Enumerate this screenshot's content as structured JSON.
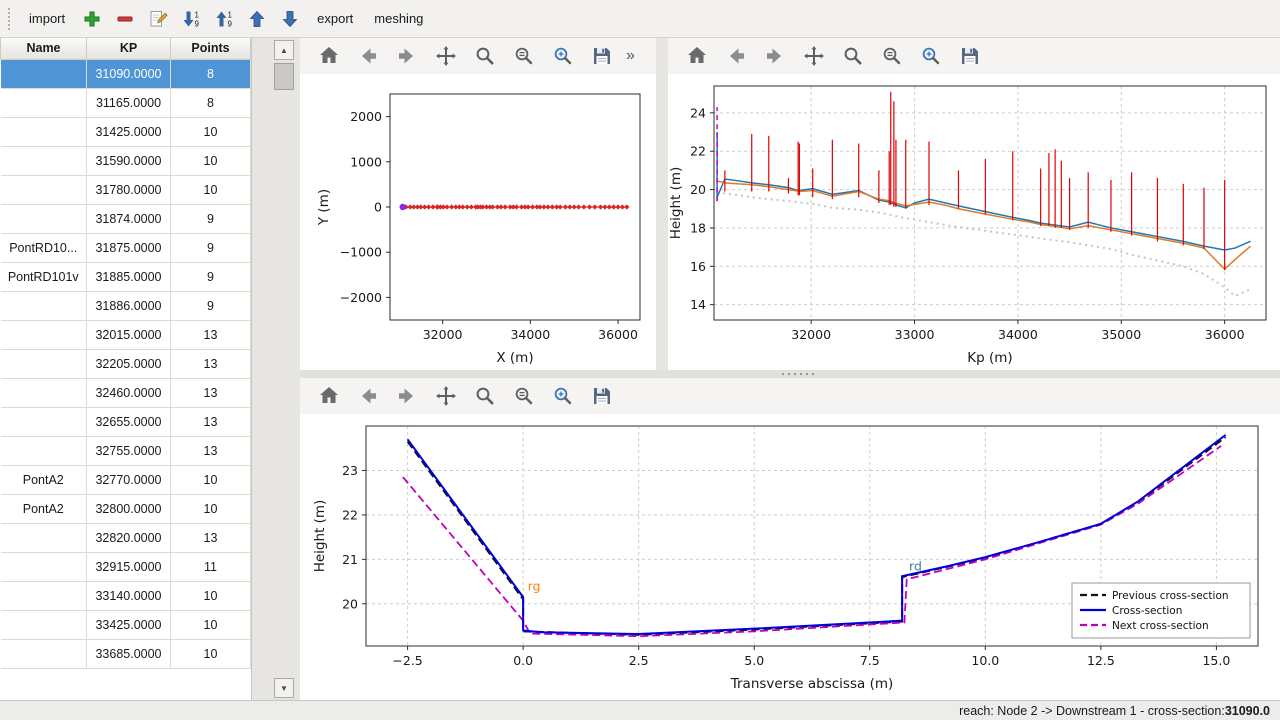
{
  "colors": {
    "selection_blue": "#4f94d4",
    "toolbar_arrow_blue": "#3465a4",
    "add_green": "#2ea52e",
    "remove_red": "#d03a3a"
  },
  "toolbar": {
    "items": [
      {
        "type": "button",
        "label": "import",
        "name": "import-button"
      },
      {
        "type": "icon",
        "icon": "add-icon",
        "name": "add-section-button"
      },
      {
        "type": "icon",
        "icon": "remove-icon",
        "name": "remove-section-button"
      },
      {
        "type": "icon",
        "icon": "edit-icon",
        "name": "edit-section-button"
      },
      {
        "type": "icon",
        "icon": "sort-descending-icon",
        "name": "sort-descending-button"
      },
      {
        "type": "icon",
        "icon": "sort-ascending-icon",
        "name": "sort-ascending-button"
      },
      {
        "type": "icon",
        "icon": "move-up-icon",
        "name": "move-up-button"
      },
      {
        "type": "icon",
        "icon": "move-down-icon",
        "name": "move-down-button"
      },
      {
        "type": "button",
        "label": "export",
        "name": "export-button"
      },
      {
        "type": "button",
        "label": "meshing",
        "name": "meshing-button"
      }
    ]
  },
  "plot_toolbar": {
    "icons": [
      "home-icon",
      "back-icon",
      "forward-icon",
      "pan-icon",
      "zoom-icon",
      "subplots-icon",
      "edit-parameters-icon",
      "save-icon"
    ],
    "overflow_label": "»"
  },
  "table": {
    "columns": [
      "Name",
      "KP",
      "Points"
    ],
    "selected_index": 0,
    "rows": [
      {
        "name": "",
        "kp": "31090.0000",
        "points": "8"
      },
      {
        "name": "",
        "kp": "31165.0000",
        "points": "8"
      },
      {
        "name": "",
        "kp": "31425.0000",
        "points": "10"
      },
      {
        "name": "",
        "kp": "31590.0000",
        "points": "10"
      },
      {
        "name": "",
        "kp": "31780.0000",
        "points": "10"
      },
      {
        "name": "",
        "kp": "31874.0000",
        "points": "9"
      },
      {
        "name": "PontRD10...",
        "kp": "31875.0000",
        "points": "9"
      },
      {
        "name": "PontRD101v",
        "kp": "31885.0000",
        "points": "9"
      },
      {
        "name": "",
        "kp": "31886.0000",
        "points": "9"
      },
      {
        "name": "",
        "kp": "32015.0000",
        "points": "13"
      },
      {
        "name": "",
        "kp": "32205.0000",
        "points": "13"
      },
      {
        "name": "",
        "kp": "32460.0000",
        "points": "13"
      },
      {
        "name": "",
        "kp": "32655.0000",
        "points": "13"
      },
      {
        "name": "",
        "kp": "32755.0000",
        "points": "13"
      },
      {
        "name": "PontA2",
        "kp": "32770.0000",
        "points": "10"
      },
      {
        "name": "PontA2",
        "kp": "32800.0000",
        "points": "10"
      },
      {
        "name": "",
        "kp": "32820.0000",
        "points": "13"
      },
      {
        "name": "",
        "kp": "32915.0000",
        "points": "11"
      },
      {
        "name": "",
        "kp": "33140.0000",
        "points": "10"
      },
      {
        "name": "",
        "kp": "33425.0000",
        "points": "10"
      },
      {
        "name": "",
        "kp": "33685.0000",
        "points": "10"
      }
    ]
  },
  "statusbar": {
    "prefix": "reach: Node 2 -> Downstream 1 - cross-section: ",
    "value": "31090.0"
  },
  "chart_data": [
    {
      "name": "plan-view",
      "type": "scatter",
      "title": "",
      "xlabel": "X (m)",
      "ylabel": "Y (m)",
      "xlim": [
        30800,
        36500
      ],
      "ylim": [
        -2500,
        2500
      ],
      "xticks": [
        32000,
        34000,
        36000
      ],
      "yticks": [
        -2000,
        -1000,
        0,
        1000,
        2000
      ],
      "x_decimals": 0,
      "grid": false,
      "series": [
        {
          "name": "river-axis-sections",
          "color": "#e8542c",
          "width": 1.2,
          "marker": "diamond",
          "marker_size": 2.6,
          "marker_color": "#d62728",
          "x": [
            31090,
            31165,
            31260,
            31340,
            31425,
            31500,
            31590,
            31680,
            31780,
            31874,
            31886,
            31950,
            32015,
            32100,
            32205,
            32300,
            32380,
            32460,
            32560,
            32655,
            32755,
            32800,
            32860,
            32915,
            33000,
            33075,
            33140,
            33250,
            33330,
            33425,
            33540,
            33610,
            33685,
            33800,
            33880,
            33950,
            34050,
            34150,
            34220,
            34310,
            34400,
            34500,
            34600,
            34680,
            34800,
            34900,
            35000,
            35100,
            35220,
            35350,
            35470,
            35600,
            35700,
            35800,
            35900,
            36000,
            36100,
            36200
          ],
          "y": 0
        },
        {
          "name": "start-point",
          "color": "#8a2be2",
          "marker": "circle",
          "marker_size": 3.2,
          "x": [
            31090
          ],
          "y": [
            0
          ]
        }
      ]
    },
    {
      "name": "longitudinal-profile",
      "type": "line",
      "title": "",
      "xlabel": "Kp (m)",
      "ylabel": "Height (m)",
      "xlim": [
        31060,
        36400
      ],
      "ylim": [
        13.2,
        25.4
      ],
      "xticks": [
        32000,
        33000,
        34000,
        35000,
        36000
      ],
      "yticks": [
        14,
        16,
        18,
        20,
        22,
        24
      ],
      "x_decimals": 0,
      "grid": true,
      "x": [
        31090,
        31165,
        31300,
        31425,
        31590,
        31780,
        31874,
        31886,
        32015,
        32205,
        32460,
        32655,
        32755,
        32800,
        32820,
        32915,
        33000,
        33140,
        33300,
        33425,
        33685,
        33950,
        34100,
        34220,
        34360,
        34500,
        34680,
        34900,
        35100,
        35350,
        35600,
        35800,
        36000,
        36100,
        36250
      ],
      "series": [
        {
          "name": "thalweg-dotted",
          "color": "#c4c4c4",
          "width": 2,
          "dash": "2,4",
          "y": [
            19.85,
            19.8,
            19.7,
            19.6,
            19.5,
            19.4,
            19.35,
            19.33,
            19.25,
            19.05,
            18.95,
            18.8,
            18.7,
            18.65,
            18.62,
            18.5,
            18.45,
            18.3,
            18.15,
            18.05,
            17.85,
            17.65,
            17.55,
            17.45,
            17.35,
            17.25,
            17.1,
            16.9,
            16.6,
            16.3,
            16.0,
            15.6,
            14.9,
            14.45,
            14.8
          ]
        },
        {
          "name": "left-bank-line",
          "color": "#1f77b4",
          "width": 1.5,
          "y": [
            19.6,
            20.55,
            20.45,
            20.35,
            20.25,
            20.1,
            19.95,
            19.95,
            20.05,
            19.75,
            19.95,
            19.45,
            19.35,
            19.25,
            19.2,
            19.05,
            19.3,
            19.5,
            19.3,
            19.15,
            18.85,
            18.55,
            18.4,
            18.25,
            18.15,
            18.05,
            18.3,
            18.0,
            17.8,
            17.55,
            17.3,
            17.05,
            16.85,
            16.95,
            17.3
          ]
        },
        {
          "name": "right-bank-line",
          "color": "#e07b28",
          "width": 1.5,
          "y": [
            20.45,
            20.35,
            20.3,
            20.25,
            20.15,
            20.0,
            19.92,
            19.9,
            19.95,
            19.65,
            19.9,
            19.5,
            19.42,
            19.32,
            19.28,
            19.15,
            19.22,
            19.35,
            19.18,
            19.0,
            18.72,
            18.45,
            18.32,
            18.18,
            18.08,
            17.95,
            18.12,
            17.9,
            17.7,
            17.45,
            17.2,
            16.95,
            15.85,
            16.35,
            17.05
          ]
        }
      ],
      "vlines": [
        {
          "name": "cross-section-markers",
          "color": "#e00000",
          "width": 1.2,
          "x": [
            31165,
            31425,
            31590,
            31780,
            31874,
            31886,
            32015,
            32205,
            32460,
            32655,
            32755,
            32770,
            32800,
            32820,
            32915,
            33140,
            33425,
            33685,
            33950,
            34220,
            34300,
            34360,
            34420,
            34500,
            34680,
            34900,
            35100,
            35350,
            35600,
            35800,
            36000
          ],
          "y0": [
            19.9,
            19.9,
            19.9,
            19.8,
            19.7,
            19.7,
            19.6,
            19.5,
            19.6,
            19.3,
            19.2,
            19.2,
            19.1,
            19.1,
            19.0,
            19.2,
            19.0,
            18.7,
            18.4,
            18.1,
            18.1,
            18.0,
            18.0,
            17.9,
            18.0,
            17.8,
            17.6,
            17.3,
            17.1,
            16.9,
            15.8
          ],
          "y1": [
            21.0,
            22.9,
            22.8,
            20.6,
            22.5,
            22.4,
            21.1,
            22.6,
            22.4,
            21.0,
            22.0,
            25.1,
            24.6,
            22.6,
            22.6,
            22.5,
            21.0,
            21.6,
            22.0,
            21.1,
            21.9,
            22.1,
            21.5,
            20.6,
            20.9,
            20.5,
            20.9,
            20.6,
            20.3,
            20.1,
            20.5
          ]
        },
        {
          "name": "first-section-spike",
          "color": "#1f77b4",
          "width": 1.5,
          "x": [
            31090
          ],
          "y0": [
            19.4
          ],
          "y1": [
            23.0
          ]
        },
        {
          "name": "current-section-marker",
          "color": "#cc00cc",
          "width": 1.5,
          "dash": "5,4",
          "x": [
            31090
          ],
          "y0": [
            19.4
          ],
          "y1": [
            24.3
          ]
        }
      ]
    },
    {
      "name": "cross-section",
      "type": "line",
      "title": "",
      "xlabel": "Transverse abscissa (m)",
      "ylabel": "Height (m)",
      "xlim": [
        -3.4,
        15.9
      ],
      "ylim": [
        19.05,
        24.0
      ],
      "xticks": [
        -2.5,
        0.0,
        2.5,
        5.0,
        7.5,
        10.0,
        12.5,
        15.0
      ],
      "yticks": [
        20,
        21,
        22,
        23
      ],
      "x_decimals": 1,
      "grid": true,
      "series": [
        {
          "name": "previous-cross-section",
          "color": "#111111",
          "width": 2,
          "dash": "8,4",
          "x": [
            -2.5,
            0,
            0,
            2.5,
            5,
            8.2,
            8.2,
            10,
            12.5,
            13.3,
            15.2
          ],
          "y": [
            23.65,
            20.1,
            19.38,
            19.3,
            19.42,
            19.6,
            20.6,
            21.03,
            21.8,
            22.28,
            23.75
          ]
        },
        {
          "name": "next-cross-section",
          "color": "#c000c0",
          "width": 1.8,
          "dash": "8,4",
          "x": [
            -2.6,
            0,
            0.15,
            2.5,
            5,
            8.25,
            8.3,
            10,
            12.5,
            13.3,
            15.1
          ],
          "y": [
            22.85,
            19.62,
            19.33,
            19.27,
            19.38,
            19.58,
            20.55,
            21.0,
            21.78,
            22.25,
            23.55
          ]
        },
        {
          "name": "current-cross-section",
          "color": "#0000dd",
          "width": 2,
          "x": [
            -2.5,
            0,
            0,
            0.4,
            2.5,
            5,
            8.2,
            8.2,
            9.2,
            10,
            11.2,
            12.5,
            13.3,
            15.2
          ],
          "y": [
            23.7,
            20.15,
            19.4,
            19.36,
            19.32,
            19.44,
            19.62,
            20.62,
            20.85,
            21.05,
            21.4,
            21.8,
            22.3,
            23.8
          ]
        }
      ],
      "annotations": [
        {
          "text": "rg",
          "x": 0.1,
          "y": 20.3,
          "color": "#ff7f0e"
        },
        {
          "text": "rd",
          "x": 8.35,
          "y": 20.75,
          "color": "#3b7ea8"
        }
      ],
      "legend": {
        "position": "lower-right",
        "entries": [
          {
            "label": "Previous cross-section",
            "color": "#111111",
            "dash": true
          },
          {
            "label": "Cross-section",
            "color": "#0000dd",
            "dash": false
          },
          {
            "label": "Next cross-section",
            "color": "#c000c0",
            "dash": true
          }
        ]
      }
    }
  ]
}
